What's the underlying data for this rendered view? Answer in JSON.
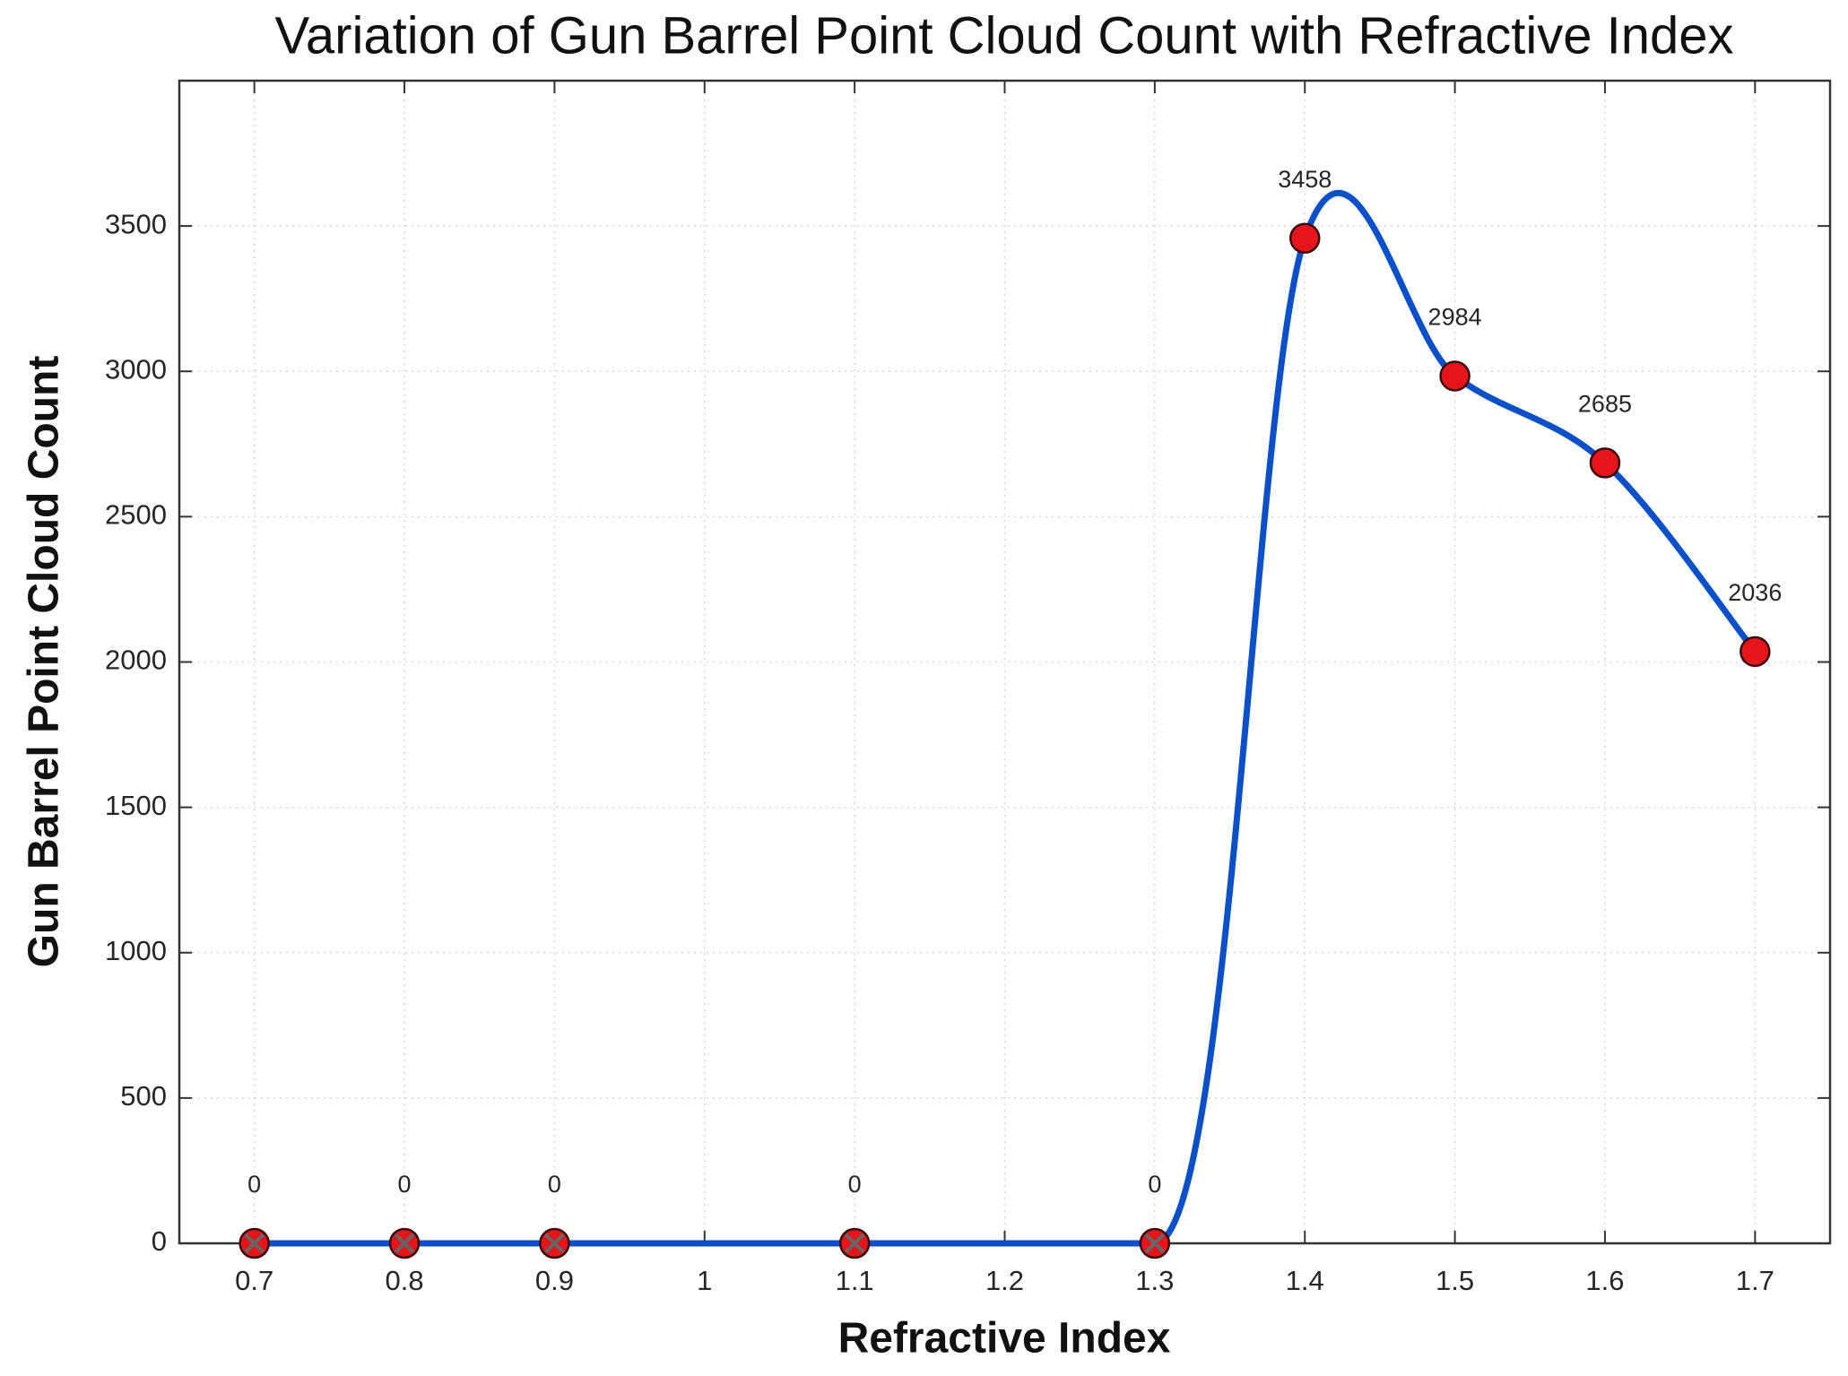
{
  "chart_data": {
    "type": "line",
    "title": "Variation of Gun Barrel Point Cloud Count with Refractive Index",
    "x_label": "Refractive Index",
    "y_label": "Gun Barrel Point Cloud Count",
    "x": [
      0.7,
      0.8,
      0.9,
      1.1,
      1.3,
      1.4,
      1.5,
      1.6,
      1.7
    ],
    "values": [
      0,
      0,
      0,
      0,
      0,
      3458,
      2984,
      2685,
      2036
    ],
    "color": "#0a50c8",
    "marker_color": "#e8141b",
    "xlim": [
      0.65,
      1.75
    ],
    "xticks": [
      0.7,
      0.8,
      0.9,
      1,
      1.1,
      1.2,
      1.3,
      1.4,
      1.5,
      1.6,
      1.7
    ],
    "ylim": [
      0,
      4000
    ],
    "yticks": [
      0,
      500,
      1000,
      1500,
      2000,
      2500,
      3000,
      3500
    ],
    "grid": true
  }
}
